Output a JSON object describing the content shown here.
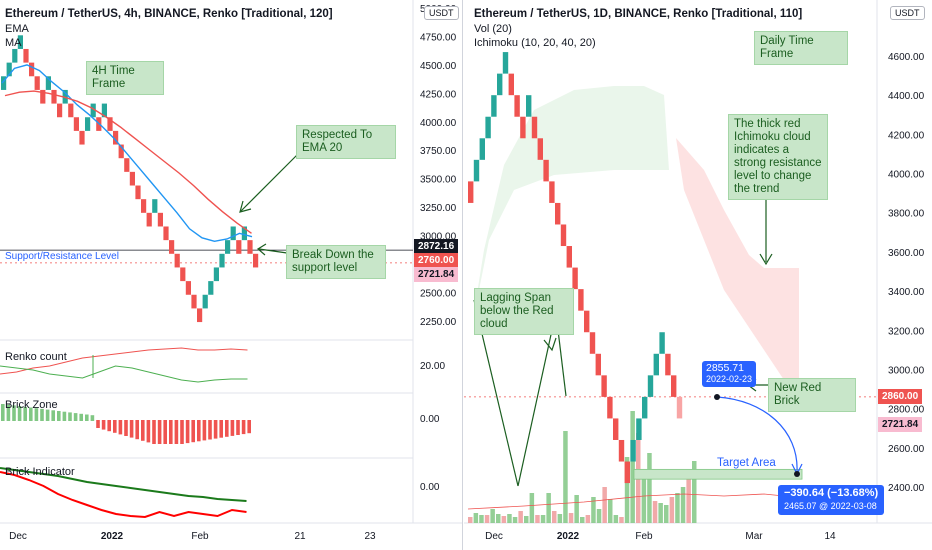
{
  "left": {
    "title": "Ethereum / TetherUS, 4h, BINANCE, Renko [Traditional, 120]",
    "indicators": [
      "EMA",
      "MA"
    ],
    "currency": "USDT",
    "top_tick": "5000.00",
    "price_ticks": [
      "4750.00",
      "4500.00",
      "4250.00",
      "4000.00",
      "3750.00",
      "3500.00",
      "3250.00",
      "3000.00",
      "2500.00",
      "2250.00"
    ],
    "price_tags": {
      "current": "2872.16",
      "red1": "2760.00",
      "pink": "2721.84"
    },
    "support_label": "Support/Resistance Level",
    "notes": {
      "timeframe": "4H Time Frame",
      "ema": "Respected To EMA 20",
      "breakdown": "Break Down the support level"
    },
    "subpanels": {
      "renko_count": "Renko count",
      "renko_value": "20.00",
      "brick_zone": "Brick Zone",
      "brick_zone_value": "0.00",
      "brick_indicator": "Brick Indicator",
      "brick_indicator_value": "0.00"
    },
    "x_ticks": [
      "Dec",
      "2022",
      "Feb",
      "21",
      "23"
    ]
  },
  "right": {
    "title": "Ethereum / TetherUS, 1D, BINANCE, Renko [Traditional, 110]",
    "indicators": [
      "Vol (20)",
      "Ichimoku (10, 20, 40, 20)"
    ],
    "currency": "USDT",
    "price_ticks": [
      "4600.00",
      "4400.00",
      "4200.00",
      "4000.00",
      "3800.00",
      "3600.00",
      "3400.00",
      "3200.00",
      "3000.00",
      "2800.00",
      "2600.00",
      "2400.00"
    ],
    "price_tags": {
      "red": "2860.00",
      "pink": "2721.84"
    },
    "notes": {
      "timeframe": "Daily Time Frame",
      "cloud": "The thick red Ichimoku cloud indicates a strong resistance level to change the trend",
      "lagging": "Lagging Span below the Red cloud",
      "new_brick": "New Red Brick"
    },
    "target_label": "Target Area",
    "callout": {
      "price": "2855.71",
      "date": "2022-02-23"
    },
    "measure": {
      "change": "−390.64 (−13.68%)",
      "detail": "2465.07 @ 2022-03-08"
    },
    "x_ticks": [
      "Dec",
      "2022",
      "Feb",
      "Mar",
      "14"
    ]
  },
  "colors": {
    "up": "#26a69a",
    "down": "#ef5350",
    "note_bg": "#c8e6c9",
    "tag_blue": "#2962ff",
    "ema_red": "#ef5350",
    "ma_blue": "#2196f3"
  },
  "chart_data": [
    {
      "type": "renko",
      "title": "Ethereum / TetherUS, 4h, BINANCE, Renko [Traditional, 120]",
      "brick_size": 120,
      "ylim": [
        2100,
        5000
      ],
      "bricks": [
        {
          "d": "up",
          "o": 4280,
          "c": 4400
        },
        {
          "d": "up",
          "o": 4400,
          "c": 4520
        },
        {
          "d": "up",
          "o": 4520,
          "c": 4640
        },
        {
          "d": "up",
          "o": 4640,
          "c": 4760
        },
        {
          "d": "down",
          "o": 4640,
          "c": 4520
        },
        {
          "d": "down",
          "o": 4520,
          "c": 4400
        },
        {
          "d": "down",
          "o": 4400,
          "c": 4280
        },
        {
          "d": "down",
          "o": 4280,
          "c": 4160
        },
        {
          "d": "up",
          "o": 4280,
          "c": 4400
        },
        {
          "d": "down",
          "o": 4280,
          "c": 4160
        },
        {
          "d": "down",
          "o": 4160,
          "c": 4040
        },
        {
          "d": "up",
          "o": 4160,
          "c": 4280
        },
        {
          "d": "down",
          "o": 4160,
          "c": 4040
        },
        {
          "d": "down",
          "o": 4040,
          "c": 3920
        },
        {
          "d": "down",
          "o": 3920,
          "c": 3800
        },
        {
          "d": "up",
          "o": 3920,
          "c": 4040
        },
        {
          "d": "up",
          "o": 4040,
          "c": 4160
        },
        {
          "d": "down",
          "o": 4040,
          "c": 3920
        },
        {
          "d": "up",
          "o": 4040,
          "c": 4160
        },
        {
          "d": "down",
          "o": 4040,
          "c": 3920
        },
        {
          "d": "down",
          "o": 3920,
          "c": 3800
        },
        {
          "d": "down",
          "o": 3800,
          "c": 3680
        },
        {
          "d": "down",
          "o": 3680,
          "c": 3560
        },
        {
          "d": "down",
          "o": 3560,
          "c": 3440
        },
        {
          "d": "down",
          "o": 3440,
          "c": 3320
        },
        {
          "d": "down",
          "o": 3320,
          "c": 3200
        },
        {
          "d": "down",
          "o": 3200,
          "c": 3080
        },
        {
          "d": "up",
          "o": 3200,
          "c": 3320
        },
        {
          "d": "down",
          "o": 3200,
          "c": 3080
        },
        {
          "d": "down",
          "o": 3080,
          "c": 2960
        },
        {
          "d": "down",
          "o": 2960,
          "c": 2840
        },
        {
          "d": "down",
          "o": 2840,
          "c": 2720
        },
        {
          "d": "down",
          "o": 2720,
          "c": 2600
        },
        {
          "d": "down",
          "o": 2600,
          "c": 2480
        },
        {
          "d": "down",
          "o": 2480,
          "c": 2360
        },
        {
          "d": "down",
          "o": 2360,
          "c": 2240
        },
        {
          "d": "up",
          "o": 2360,
          "c": 2480
        },
        {
          "d": "up",
          "o": 2480,
          "c": 2600
        },
        {
          "d": "up",
          "o": 2600,
          "c": 2720
        },
        {
          "d": "up",
          "o": 2720,
          "c": 2840
        },
        {
          "d": "up",
          "o": 2840,
          "c": 2960
        },
        {
          "d": "up",
          "o": 2960,
          "c": 3080
        },
        {
          "d": "down",
          "o": 2960,
          "c": 2840
        },
        {
          "d": "up",
          "o": 2960,
          "c": 3080
        },
        {
          "d": "down",
          "o": 2960,
          "c": 2840
        },
        {
          "d": "down",
          "o": 2840,
          "c": 2720
        }
      ],
      "ema20": [
        4340,
        4470,
        4500,
        4450,
        4350,
        4260,
        4150,
        4060,
        3960,
        3850,
        3720,
        3590,
        3460,
        3330,
        3200,
        3060,
        2980,
        2950,
        2970,
        3020,
        2990
      ],
      "ma": [
        4230,
        4260,
        4270,
        4250,
        4220,
        4180,
        4120,
        4040,
        3950,
        3850,
        3750,
        3650,
        3550,
        3440,
        3320,
        3210,
        3110,
        3020
      ],
      "support_level": 2872.16
    },
    {
      "type": "renko",
      "title": "Ethereum / TetherUS, 1D, BINANCE, Renko [Traditional, 110]",
      "brick_size": 110,
      "ylim": [
        2300,
        4750
      ],
      "bricks": [
        {
          "d": "down",
          "o": 3960,
          "c": 3850
        },
        {
          "d": "up",
          "o": 3960,
          "c": 4070
        },
        {
          "d": "up",
          "o": 4070,
          "c": 4180
        },
        {
          "d": "up",
          "o": 4180,
          "c": 4290
        },
        {
          "d": "up",
          "o": 4290,
          "c": 4400
        },
        {
          "d": "up",
          "o": 4400,
          "c": 4510
        },
        {
          "d": "up",
          "o": 4510,
          "c": 4620
        },
        {
          "d": "down",
          "o": 4510,
          "c": 4400
        },
        {
          "d": "down",
          "o": 4400,
          "c": 4290
        },
        {
          "d": "down",
          "o": 4290,
          "c": 4180
        },
        {
          "d": "up",
          "o": 4290,
          "c": 4400
        },
        {
          "d": "down",
          "o": 4290,
          "c": 4180
        },
        {
          "d": "down",
          "o": 4180,
          "c": 4070
        },
        {
          "d": "down",
          "o": 4070,
          "c": 3960
        },
        {
          "d": "down",
          "o": 3960,
          "c": 3850
        },
        {
          "d": "down",
          "o": 3850,
          "c": 3740
        },
        {
          "d": "down",
          "o": 3740,
          "c": 3630
        },
        {
          "d": "down",
          "o": 3630,
          "c": 3520
        },
        {
          "d": "down",
          "o": 3520,
          "c": 3410
        },
        {
          "d": "down",
          "o": 3410,
          "c": 3300
        },
        {
          "d": "down",
          "o": 3300,
          "c": 3190
        },
        {
          "d": "down",
          "o": 3190,
          "c": 3080
        },
        {
          "d": "down",
          "o": 3080,
          "c": 2970
        },
        {
          "d": "down",
          "o": 2970,
          "c": 2860
        },
        {
          "d": "down",
          "o": 2860,
          "c": 2750
        },
        {
          "d": "down",
          "o": 2750,
          "c": 2640
        },
        {
          "d": "down",
          "o": 2640,
          "c": 2530
        },
        {
          "d": "down",
          "o": 2530,
          "c": 2420
        },
        {
          "d": "up",
          "o": 2530,
          "c": 2640
        },
        {
          "d": "up",
          "o": 2640,
          "c": 2750
        },
        {
          "d": "up",
          "o": 2750,
          "c": 2860
        },
        {
          "d": "up",
          "o": 2860,
          "c": 2970
        },
        {
          "d": "up",
          "o": 2970,
          "c": 3080
        },
        {
          "d": "up",
          "o": 3080,
          "c": 3190
        },
        {
          "d": "down",
          "o": 3080,
          "c": 2970
        },
        {
          "d": "down",
          "o": 2970,
          "c": 2860
        },
        {
          "d": "down",
          "o": 2860,
          "c": 2750
        }
      ],
      "cloud": {
        "color": "red",
        "top_range": [
          4190,
          3510
        ],
        "bottom_range": [
          4000,
          3050
        ]
      },
      "target_zone": [
        2440,
        2490
      ],
      "measure_from": {
        "date": "2022-02-23",
        "price": 2855.71
      },
      "measure_to": {
        "date": "2022-03-08",
        "price": 2465.07
      }
    }
  ]
}
